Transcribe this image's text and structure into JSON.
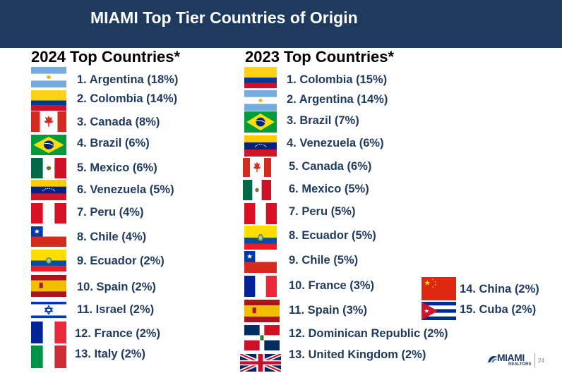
{
  "title": "MIAMI Top Tier Countries of Origin",
  "columns": {
    "left": {
      "heading": "2024 Top Countries*",
      "items": [
        {
          "label": "1. Argentina (18%)",
          "flag": "argentina"
        },
        {
          "label": "2. Colombia (14%)",
          "flag": "colombia"
        },
        {
          "label": "3. Canada (8%)",
          "flag": "canada"
        },
        {
          "label": "4. Brazil (6%)",
          "flag": "brazil"
        },
        {
          "label": "5. Mexico (6%)",
          "flag": "mexico"
        },
        {
          "label": "6. Venezuela (5%)",
          "flag": "venezuela"
        },
        {
          "label": "7. Peru (4%)",
          "flag": "peru"
        },
        {
          "label": "8. Chile (4%)",
          "flag": "chile"
        },
        {
          "label": "9. Ecuador (2%)",
          "flag": "ecuador"
        },
        {
          "label": "10. Spain (2%)",
          "flag": "spain"
        },
        {
          "label": "11. Israel (2%)",
          "flag": "israel"
        },
        {
          "label": "12. France (2%)",
          "flag": "france"
        },
        {
          "label": "13. Italy (2%)",
          "flag": "italy"
        }
      ]
    },
    "right": {
      "heading": "2023 Top Countries*",
      "items": [
        {
          "label": "1. Colombia (15%)",
          "flag": "colombia"
        },
        {
          "label": "2. Argentina (14%)",
          "flag": "argentina"
        },
        {
          "label": "3. Brazil (7%)",
          "flag": "brazil"
        },
        {
          "label": "4. Venezuela (6%)",
          "flag": "venezuela"
        },
        {
          "label": "5. Canada (6%)",
          "flag": "canada"
        },
        {
          "label": "6. Mexico (5%)",
          "flag": "mexico"
        },
        {
          "label": "7. Peru (5%)",
          "flag": "peru"
        },
        {
          "label": "8. Ecuador (5%)",
          "flag": "ecuador"
        },
        {
          "label": "9. Chile (5%)",
          "flag": "chile"
        },
        {
          "label": "10. France (3%)",
          "flag": "france"
        },
        {
          "label": "11. Spain (3%)",
          "flag": "spain"
        },
        {
          "label": "12. Dominican Republic (2%)",
          "flag": "dominican-republic"
        },
        {
          "label": "13. United Kingdom (2%)",
          "flag": "united-kingdom"
        },
        {
          "label": "14. China (2%)",
          "flag": "china"
        },
        {
          "label": "15. Cuba (2%)",
          "flag": "cuba"
        }
      ]
    }
  },
  "logo": {
    "name": "MIAMI",
    "sub": "REALTORS"
  },
  "page_number": "24",
  "colors": {
    "banner": "#1f3a5f",
    "label": "#1f3a5f",
    "heading": "#000000"
  }
}
